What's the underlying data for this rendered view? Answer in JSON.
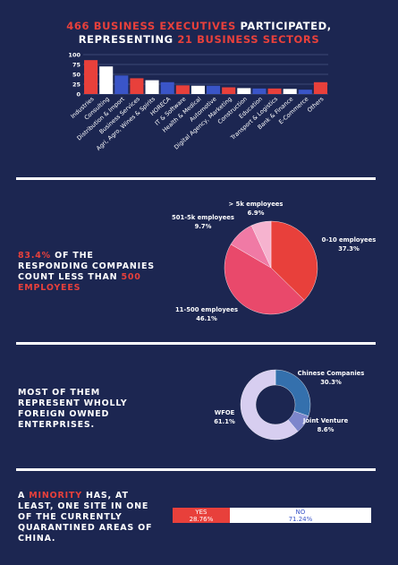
{
  "header": {
    "count": "466",
    "part1": "Business executives",
    "part2": "participated,",
    "part3": "representing",
    "sectors": "21",
    "part4": "Business sectors"
  },
  "chart_data": [
    {
      "type": "bar",
      "categories": [
        "Industries",
        "Consulting",
        "Distribution & Import",
        "Business Services",
        "Agri, Agro, Wines & Spirits",
        "HORECA",
        "IT & Software",
        "Health & Medical",
        "Automotive",
        "Digital Agency, Marketing",
        "Construction",
        "Education",
        "Transport & Logistics",
        "Bank & Finance",
        "E-Commerce",
        "Others"
      ],
      "values": [
        86,
        70,
        47,
        40,
        35,
        30,
        22,
        21,
        21,
        17,
        15,
        14,
        14,
        13,
        11,
        30
      ],
      "ylim": [
        0,
        100
      ],
      "yticks": [
        0,
        25,
        50,
        75,
        100
      ],
      "bar_colors": [
        "#e8403b",
        "#ffffff",
        "#3a55c8",
        "#e8403b",
        "#ffffff",
        "#3a55c8",
        "#e8403b",
        "#ffffff",
        "#3a55c8",
        "#e8403b",
        "#ffffff",
        "#3a55c8",
        "#e8403b",
        "#ffffff",
        "#3a55c8",
        "#e8403b"
      ],
      "grid": true
    },
    {
      "type": "pie",
      "labels": [
        "0-10 employees",
        "11-500 employees",
        "501-5k employees",
        "> 5k employees"
      ],
      "values": [
        37.3,
        46.1,
        9.7,
        6.9
      ],
      "value_labels": [
        "37.3%",
        "46.1%",
        "9.7%",
        "6.9%"
      ],
      "colors": [
        "#e8403b",
        "#e9496b",
        "#f07aa5",
        "#f6b3cf"
      ]
    },
    {
      "type": "pie",
      "labels": [
        "Chinese Companies",
        "Joint Venture",
        "WFOE"
      ],
      "values": [
        30.3,
        8.6,
        61.1
      ],
      "value_labels": [
        "30.3%",
        "8.6%",
        "61.1%"
      ],
      "colors": [
        "#3470ad",
        "#7d86cc",
        "#d7cef0"
      ]
    },
    {
      "type": "bar",
      "orientation": "stacked-horizontal",
      "labels": [
        "YES",
        "NO"
      ],
      "values": [
        28.76,
        71.24
      ],
      "value_labels": [
        "28.76%",
        "71.24%"
      ],
      "colors": [
        "#e8403b",
        "#ffffff"
      ]
    }
  ],
  "section2": {
    "highlight": "83.4%",
    "text1": "of the responding companies count less than",
    "highlight2": "500 employees"
  },
  "section3": {
    "text": "Most of them represent wholly foreign owned enterprises."
  },
  "section4": {
    "text1": "A",
    "highlight": "minority",
    "text2": "has, at least, one site in one of the currently quarantined areas of China."
  }
}
